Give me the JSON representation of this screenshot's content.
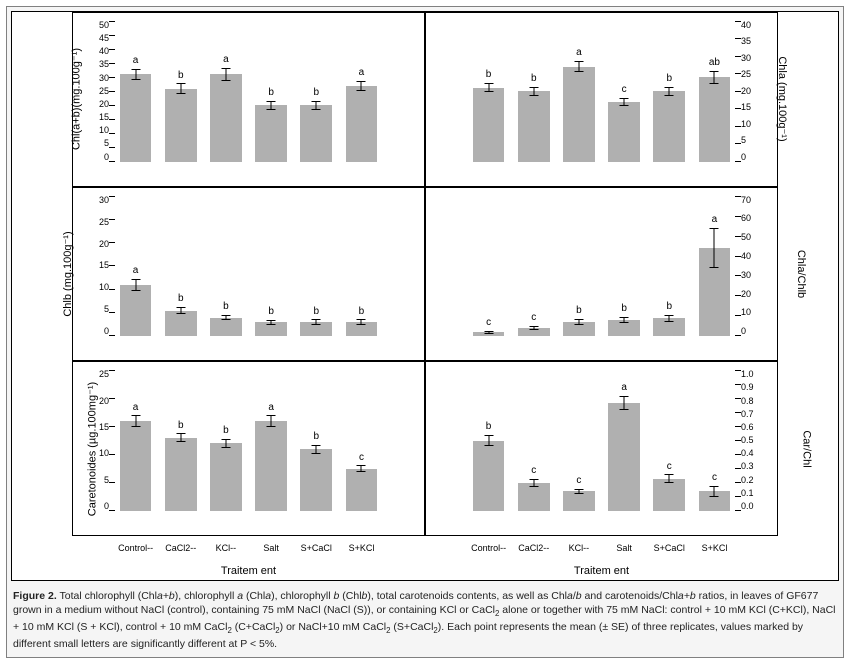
{
  "figure": {
    "background_color": "#ffffff",
    "panel_border_color": "#000000",
    "bar_color": "#b0b0b0",
    "font_family": "Arial",
    "tick_fontsize": 9,
    "label_fontsize": 11,
    "categories": [
      "Control--",
      "CaCl2--",
      "KCl--",
      "Salt",
      "S+CaCl",
      "S+KCl"
    ],
    "xlabel": "Traitem ent",
    "panels": {
      "p1": {
        "ylabel": "Chl(a+b)(mg.100g⁻¹)",
        "side": "left",
        "ylim": [
          0,
          50
        ],
        "ytick_step": 5,
        "values": [
          31,
          26,
          31,
          20,
          20,
          27
        ],
        "errors": [
          2.0,
          1.8,
          2.2,
          1.6,
          1.7,
          1.8
        ],
        "sig": [
          "a",
          "b",
          "a",
          "b",
          "b",
          "a"
        ]
      },
      "p2": {
        "ylabel": "Chla (mg.100g⁻¹)",
        "side": "right",
        "ylim": [
          0,
          40
        ],
        "ytick_step": 5,
        "values": [
          21,
          20,
          27,
          17,
          20,
          24
        ],
        "errors": [
          1.3,
          1.2,
          1.6,
          1.1,
          1.3,
          1.8
        ],
        "sig": [
          "b",
          "b",
          "a",
          "c",
          "b",
          "ab"
        ]
      },
      "p3": {
        "ylabel": "Chlb (mg.100g⁻¹)",
        "side": "left",
        "ylim": [
          0,
          30
        ],
        "ytick_step": 5,
        "values": [
          11,
          5.5,
          4,
          3,
          3,
          3
        ],
        "errors": [
          1.3,
          0.8,
          0.6,
          0.5,
          0.6,
          0.6
        ],
        "sig": [
          "a",
          "b",
          "b",
          "b",
          "b",
          "b"
        ]
      },
      "p4": {
        "ylabel": "Chla/Chlb",
        "side": "right",
        "ylim": [
          0,
          70
        ],
        "ytick_step": 10,
        "values": [
          2,
          4,
          7,
          8,
          9,
          44
        ],
        "errors": [
          0.8,
          1.0,
          1.5,
          1.6,
          1.8,
          10
        ],
        "sig": [
          "c",
          "c",
          "b",
          "b",
          "b",
          "a"
        ]
      },
      "p5": {
        "ylabel": "Caretonoides (µg.100mg⁻¹)",
        "side": "left",
        "ylim": [
          0,
          25
        ],
        "ytick_step": 5,
        "values": [
          16,
          13,
          12,
          16,
          11,
          7.5
        ],
        "errors": [
          1.0,
          0.8,
          0.8,
          1.0,
          0.8,
          0.6
        ],
        "sig": [
          "a",
          "b",
          "b",
          "a",
          "b",
          "c"
        ]
      },
      "p6": {
        "ylabel": "Car/Chl",
        "side": "right",
        "ylim": [
          0,
          1.0
        ],
        "ytick_step": 0.1,
        "values": [
          0.5,
          0.2,
          0.14,
          0.77,
          0.23,
          0.14
        ],
        "errors": [
          0.04,
          0.03,
          0.02,
          0.05,
          0.03,
          0.04
        ],
        "sig": [
          "b",
          "c",
          "c",
          "a",
          "c",
          "c"
        ]
      }
    }
  },
  "caption": {
    "label": "Figure 2.",
    "text1": " Total chlorophyll (Chl",
    "ab1": "a+b",
    "text2": "), chlorophyll ",
    "a1": "a",
    "text3": " (Chl",
    "a2": "a",
    "text4": "), chlorophyll ",
    "b1": "b",
    "text5": " (Chl",
    "b2": "b",
    "text6": "), total carotenoids contents, as well as Chl",
    "a3": "a",
    "slash": "/",
    "b3": "b",
    "text7": " and carotenoids/Chl",
    "ab2": "a+b",
    "text8": " ratios, in leaves of GF677 grown in a medium without NaCl (control), containing 75 mM NaCl (NaCl (S)), or containing KCl or CaCl",
    "sub2a": "2",
    "text9": " alone or together with 75 mM NaCl: control + 10 mM KCl (C+KCl), NaCl + 10 mM KCl (S + KCl), control + 10 mM CaCl",
    "sub2b": "2",
    "text10": " (C+CaCl",
    "sub2c": "2",
    "text11": ") or NaCl+10 mM CaCl",
    "sub2d": "2",
    "text12": " (S+CaCl",
    "sub2e": "2",
    "text13": "). Each point represents the mean (± SE) of three replicates, values marked by different small letters are significantly different at P < 5%."
  }
}
